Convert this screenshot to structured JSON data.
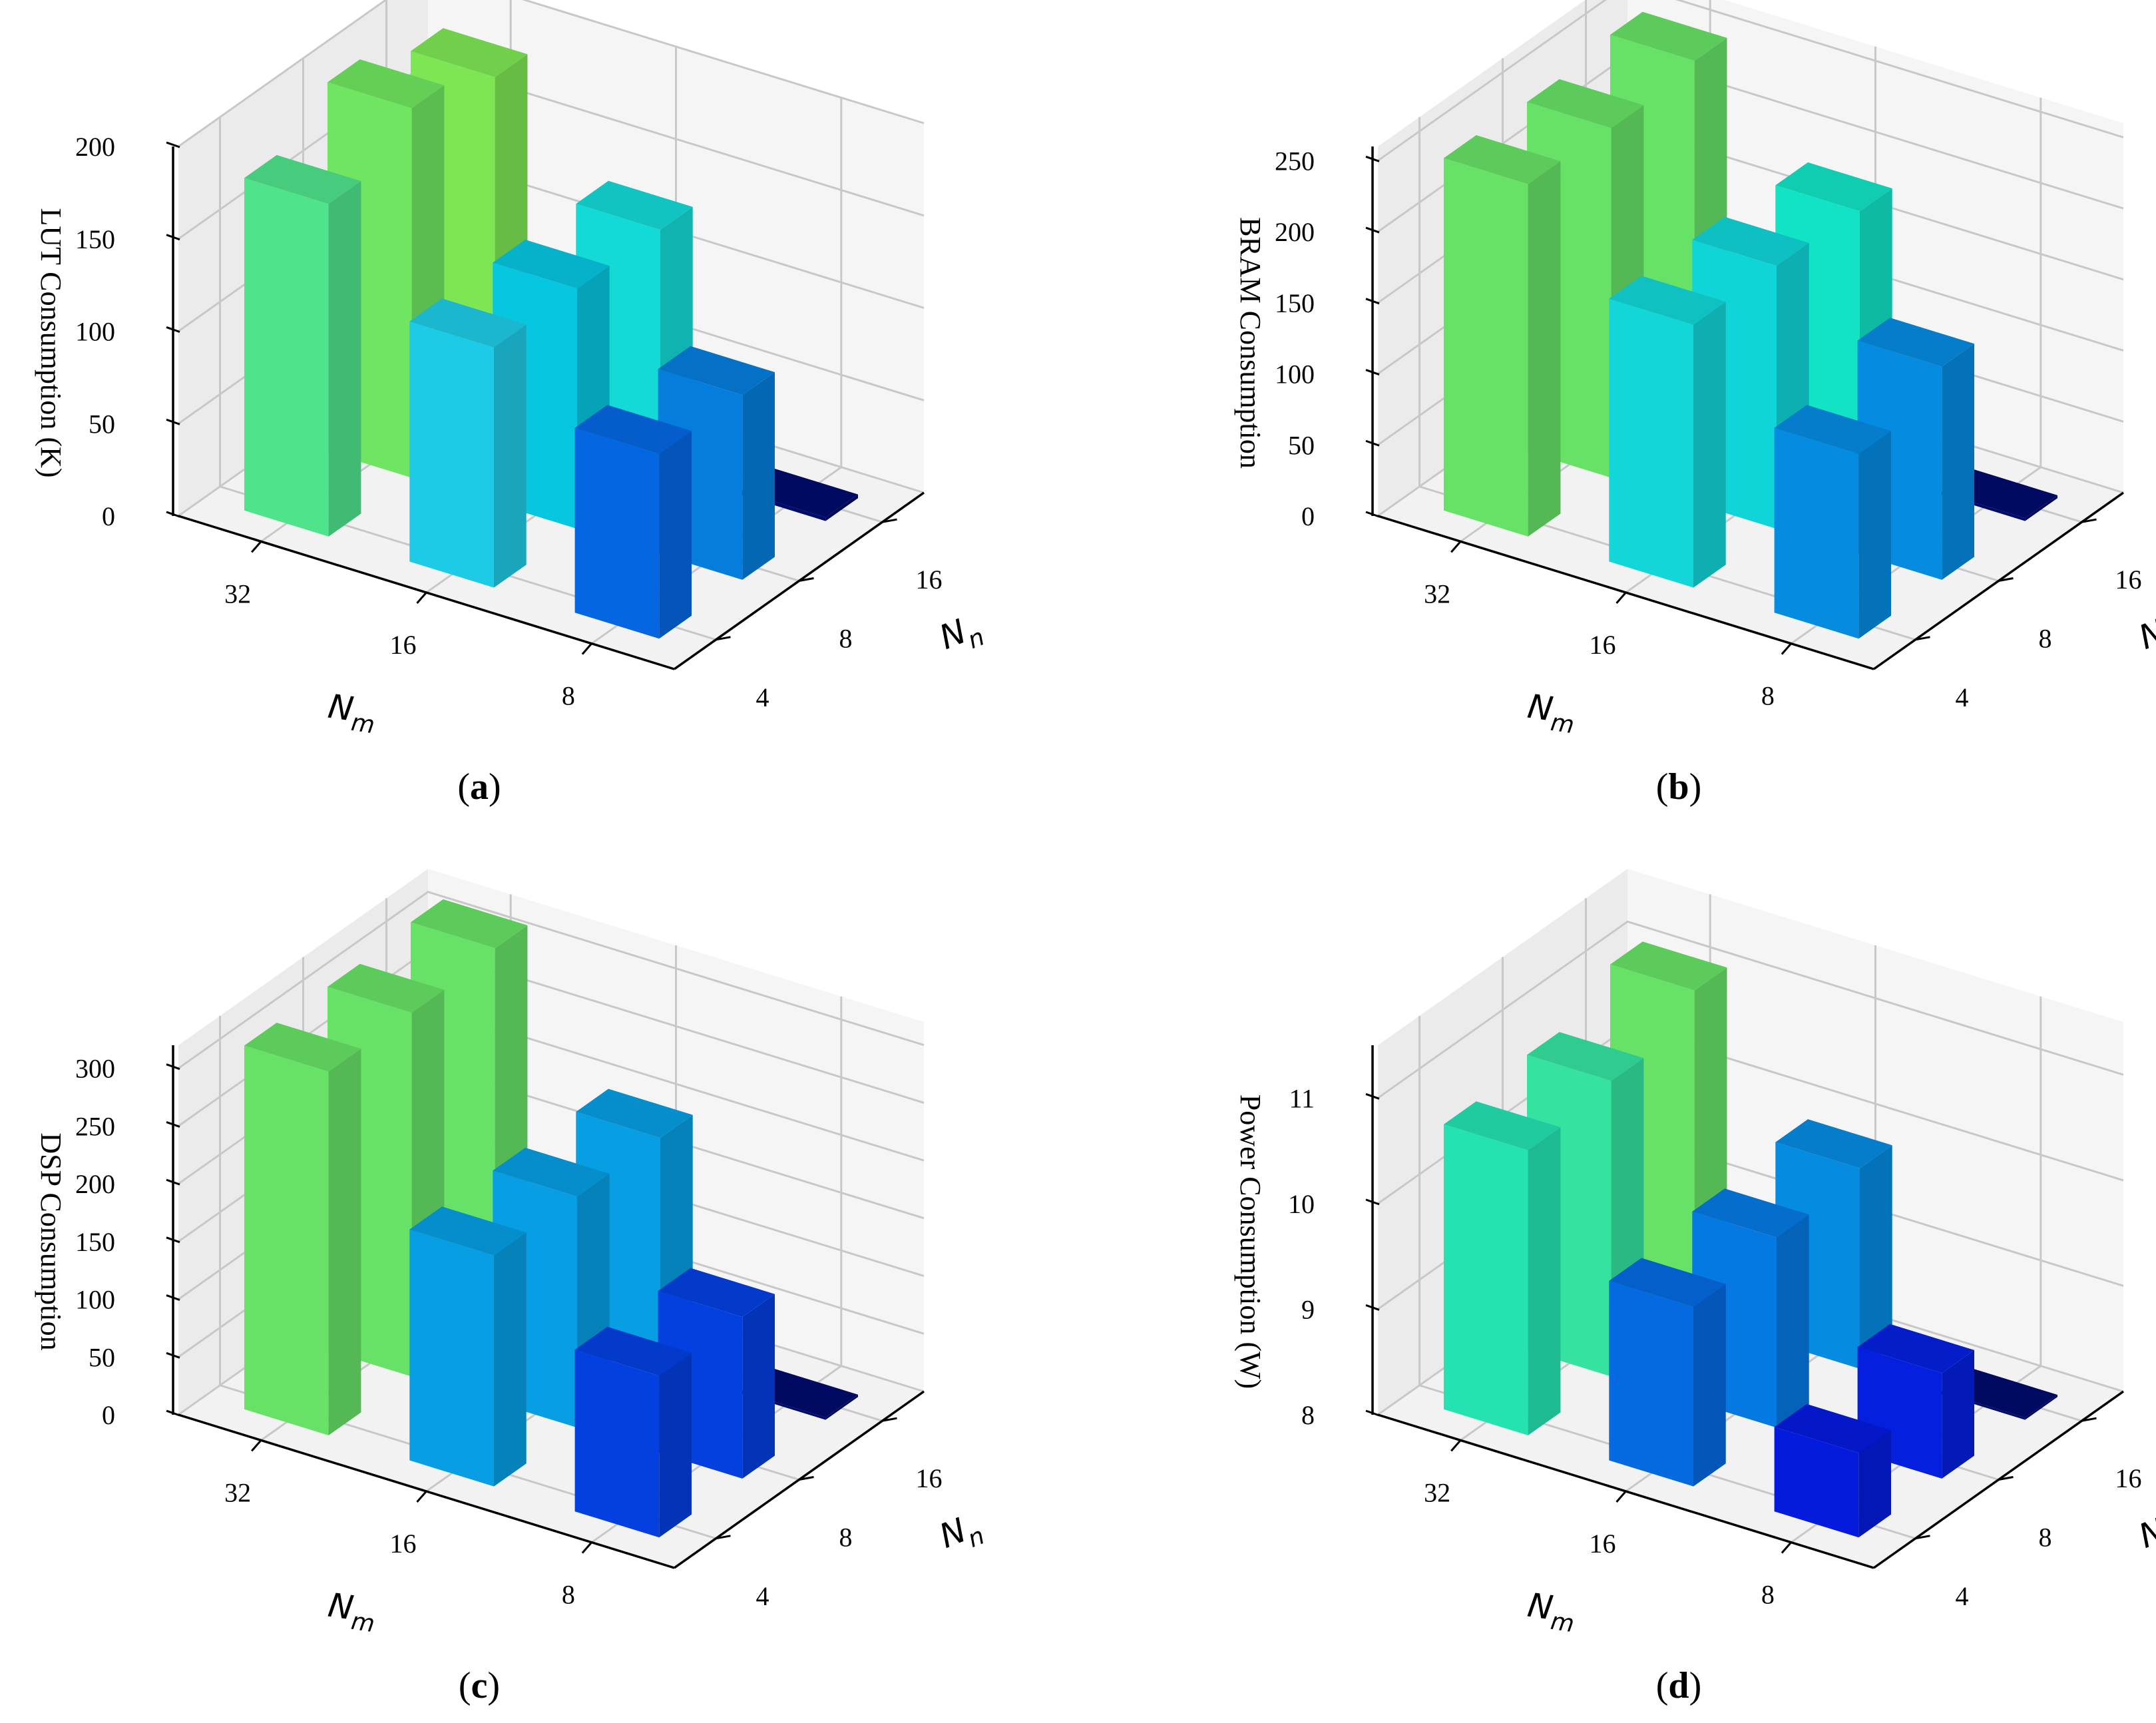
{
  "figure": {
    "layout": "2x2 grid of 3D bar charts"
  },
  "axes_common": {
    "x_label_main": "N",
    "x_label_sub": "m",
    "y_label_main": "N",
    "y_label_sub": "n",
    "x_ticks": [
      "32",
      "16",
      "8"
    ],
    "y_ticks": [
      "4",
      "8",
      "16"
    ]
  },
  "chart_data": [
    {
      "type": "bar3d",
      "panel": "a",
      "caption_letter": "a",
      "zlabel": "LUT Consumption (K)",
      "zlim": [
        0,
        200
      ],
      "zticks": [
        "0",
        "50",
        "100",
        "150",
        "200"
      ],
      "categories_nm": [
        32,
        16,
        8
      ],
      "categories_nn": [
        4,
        8,
        16
      ],
      "values": [
        [
          180,
          200,
          185
        ],
        [
          130,
          130,
          130
        ],
        [
          100,
          100,
          2
        ]
      ],
      "colors": [
        [
          "#4fe38c",
          "#6fe561",
          "#7ee653"
        ],
        [
          "#1ecbe6",
          "#07c6e0",
          "#13dad7"
        ],
        [
          "#0566e2",
          "#057ddc",
          "#000b6b"
        ]
      ]
    },
    {
      "type": "bar3d",
      "panel": "b",
      "caption_letter": "b",
      "zlabel": "BRAM Consumption",
      "zlim": [
        0,
        260
      ],
      "zticks": [
        "0",
        "50",
        "100",
        "150",
        "200",
        "250"
      ],
      "categories_nm": [
        32,
        16,
        8
      ],
      "categories_nn": [
        4,
        8,
        16
      ],
      "values": [
        [
          248,
          246,
          252
        ],
        [
          185,
          185,
          182
        ],
        [
          130,
          150,
          2
        ]
      ],
      "colors": [
        [
          "#67e266",
          "#67e266",
          "#67e266"
        ],
        [
          "#12d6d8",
          "#10d5d8",
          "#12e3c5"
        ],
        [
          "#058be0",
          "#058be0",
          "#000b6b"
        ]
      ]
    },
    {
      "type": "bar3d",
      "panel": "c",
      "caption_letter": "c",
      "zlabel": "DSP Consumption",
      "zlim": [
        0,
        320
      ],
      "zticks": [
        "0",
        "50",
        "100",
        "150",
        "200",
        "250",
        "300"
      ],
      "categories_nm": [
        32,
        16,
        8
      ],
      "categories_nn": [
        4,
        8,
        16
      ],
      "values": [
        [
          315,
          315,
          320
        ],
        [
          200,
          200,
          200
        ],
        [
          140,
          140,
          2
        ]
      ],
      "colors": [
        [
          "#67e266",
          "#67e266",
          "#67e266"
        ],
        [
          "#079ee3",
          "#079ee3",
          "#079ee3"
        ],
        [
          "#0440e0",
          "#0440e0",
          "#000b6b"
        ]
      ]
    },
    {
      "type": "bar3d",
      "panel": "d",
      "caption_letter": "d",
      "zlabel": "Power Consumption (W)",
      "zlim": [
        8,
        11.5
      ],
      "zticks": [
        "8",
        "9",
        "10",
        "11"
      ],
      "categories_nm": [
        32,
        16,
        8
      ],
      "categories_nn": [
        4,
        8,
        16
      ],
      "values": [
        [
          10.7,
          10.8,
          11.1
        ],
        [
          9.7,
          9.8,
          9.9
        ],
        [
          8.8,
          9.0,
          8.02
        ]
      ],
      "colors": [
        [
          "#24e3b1",
          "#35e2a0",
          "#67e266"
        ],
        [
          "#0569e0",
          "#0579e2",
          "#058be0"
        ],
        [
          "#041bde",
          "#0420de",
          "#000b6b"
        ]
      ]
    }
  ]
}
